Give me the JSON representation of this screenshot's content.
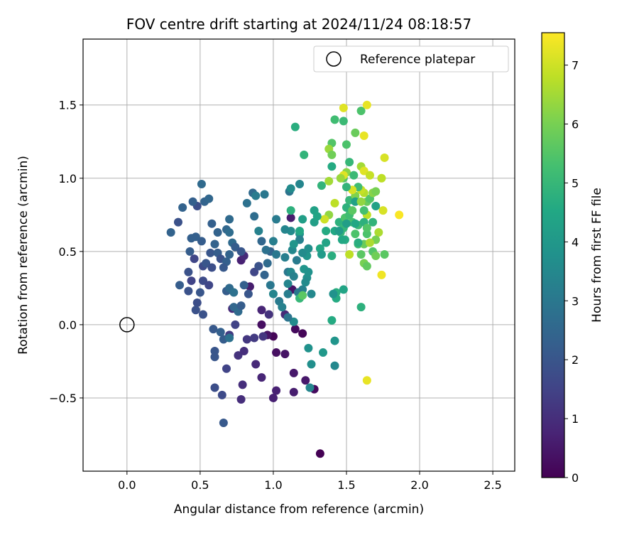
{
  "chart_data": {
    "type": "scatter",
    "title": "FOV centre drift starting at 2024/11/24 08:18:57",
    "xlabel": "Angular distance from reference (arcmin)",
    "ylabel": "Rotation from reference (arcmin)",
    "xlim": [
      -0.3,
      2.65
    ],
    "ylim": [
      -1.0,
      1.95
    ],
    "x_ticks": [
      0.0,
      0.5,
      1.0,
      1.5,
      2.0,
      2.5
    ],
    "x_tick_labels": [
      "0.0",
      "0.5",
      "1.0",
      "1.5",
      "2.0",
      "2.5"
    ],
    "y_ticks": [
      -0.5,
      0.0,
      0.5,
      1.0,
      1.5
    ],
    "y_tick_labels": [
      "−0.5",
      "0.0",
      "0.5",
      "1.0",
      "1.5"
    ],
    "grid": true,
    "legend": {
      "position": "top-right",
      "entries": [
        "Reference platepar"
      ]
    },
    "reference_point": {
      "x": 0.0,
      "y": 0.0
    },
    "colorbar": {
      "label": "Hours from first FF file",
      "range": [
        0,
        7.55
      ],
      "ticks": [
        0,
        1,
        2,
        3,
        4,
        5,
        6,
        7
      ],
      "tick_labels": [
        "0",
        "1",
        "2",
        "3",
        "4",
        "5",
        "6",
        "7"
      ],
      "colormap": "viridis"
    },
    "points": [
      {
        "x": 1.0,
        "y": -0.08,
        "t": 0.1
      },
      {
        "x": 1.15,
        "y": -0.03,
        "t": 0.2
      },
      {
        "x": 1.2,
        "y": -0.06,
        "t": 0.1
      },
      {
        "x": 0.92,
        "y": 0.0,
        "t": 0.3
      },
      {
        "x": 1.02,
        "y": -0.19,
        "t": 0.3
      },
      {
        "x": 1.08,
        "y": -0.2,
        "t": 0.4
      },
      {
        "x": 1.14,
        "y": -0.33,
        "t": 0.5
      },
      {
        "x": 1.22,
        "y": -0.38,
        "t": 0.5
      },
      {
        "x": 1.28,
        "y": -0.44,
        "t": 0.2
      },
      {
        "x": 1.32,
        "y": -0.88,
        "t": 0.0
      },
      {
        "x": 1.14,
        "y": -0.46,
        "t": 0.6
      },
      {
        "x": 1.0,
        "y": -0.5,
        "t": 0.7
      },
      {
        "x": 1.02,
        "y": -0.45,
        "t": 0.7
      },
      {
        "x": 0.92,
        "y": -0.36,
        "t": 0.8
      },
      {
        "x": 0.88,
        "y": -0.27,
        "t": 0.9
      },
      {
        "x": 0.96,
        "y": -0.07,
        "t": 0.4
      },
      {
        "x": 0.78,
        "y": -0.51,
        "t": 1.0
      },
      {
        "x": 0.79,
        "y": -0.41,
        "t": 1.0
      },
      {
        "x": 0.76,
        "y": -0.21,
        "t": 1.1
      },
      {
        "x": 0.8,
        "y": -0.18,
        "t": 1.0
      },
      {
        "x": 0.82,
        "y": -0.1,
        "t": 1.2
      },
      {
        "x": 0.87,
        "y": -0.09,
        "t": 1.3
      },
      {
        "x": 0.93,
        "y": -0.08,
        "t": 1.2
      },
      {
        "x": 0.97,
        "y": 0.07,
        "t": 1.1
      },
      {
        "x": 0.92,
        "y": 0.1,
        "t": 0.8
      },
      {
        "x": 1.08,
        "y": 0.07,
        "t": 0.9
      },
      {
        "x": 1.13,
        "y": 0.24,
        "t": 0.4
      },
      {
        "x": 1.12,
        "y": 0.73,
        "t": 0.6
      },
      {
        "x": 0.84,
        "y": 0.26,
        "t": 0.6
      },
      {
        "x": 0.78,
        "y": 0.44,
        "t": 0.7
      },
      {
        "x": 0.8,
        "y": 0.47,
        "t": 0.9
      },
      {
        "x": 0.72,
        "y": 0.11,
        "t": 0.9
      },
      {
        "x": 0.74,
        "y": 0.0,
        "t": 1.5
      },
      {
        "x": 0.7,
        "y": -0.07,
        "t": 1.3
      },
      {
        "x": 0.68,
        "y": -0.3,
        "t": 1.5
      },
      {
        "x": 0.65,
        "y": -0.48,
        "t": 1.7
      },
      {
        "x": 0.6,
        "y": -0.43,
        "t": 1.8
      },
      {
        "x": 0.66,
        "y": -0.67,
        "t": 2.1
      },
      {
        "x": 0.6,
        "y": -0.18,
        "t": 2.0
      },
      {
        "x": 0.6,
        "y": -0.22,
        "t": 2.0
      },
      {
        "x": 0.66,
        "y": -0.1,
        "t": 2.2
      },
      {
        "x": 0.59,
        "y": -0.03,
        "t": 2.1
      },
      {
        "x": 0.64,
        "y": -0.05,
        "t": 2.3
      },
      {
        "x": 0.52,
        "y": 0.07,
        "t": 1.9
      },
      {
        "x": 0.48,
        "y": 0.15,
        "t": 1.8
      },
      {
        "x": 0.47,
        "y": 0.1,
        "t": 1.9
      },
      {
        "x": 0.5,
        "y": 0.22,
        "t": 2.0
      },
      {
        "x": 0.52,
        "y": 0.3,
        "t": 1.7
      },
      {
        "x": 0.56,
        "y": 0.27,
        "t": 1.6
      },
      {
        "x": 0.42,
        "y": 0.23,
        "t": 1.9
      },
      {
        "x": 0.36,
        "y": 0.27,
        "t": 2.2
      },
      {
        "x": 0.44,
        "y": 0.3,
        "t": 1.5
      },
      {
        "x": 0.46,
        "y": 0.45,
        "t": 1.6
      },
      {
        "x": 0.42,
        "y": 0.36,
        "t": 1.9
      },
      {
        "x": 0.52,
        "y": 0.4,
        "t": 1.7
      },
      {
        "x": 0.54,
        "y": 0.42,
        "t": 2.0
      },
      {
        "x": 0.58,
        "y": 0.39,
        "t": 1.8
      },
      {
        "x": 0.57,
        "y": 0.49,
        "t": 2.0
      },
      {
        "x": 0.62,
        "y": 0.49,
        "t": 2.2
      },
      {
        "x": 0.64,
        "y": 0.45,
        "t": 1.9
      },
      {
        "x": 0.68,
        "y": 0.43,
        "t": 2.3
      },
      {
        "x": 0.66,
        "y": 0.39,
        "t": 2.1
      },
      {
        "x": 0.6,
        "y": 0.55,
        "t": 2.4
      },
      {
        "x": 0.62,
        "y": 0.63,
        "t": 2.4
      },
      {
        "x": 0.58,
        "y": 0.69,
        "t": 2.3
      },
      {
        "x": 0.51,
        "y": 0.57,
        "t": 2.2
      },
      {
        "x": 0.47,
        "y": 0.6,
        "t": 2.3
      },
      {
        "x": 0.43,
        "y": 0.5,
        "t": 2.2
      },
      {
        "x": 0.44,
        "y": 0.59,
        "t": 2.3
      },
      {
        "x": 0.48,
        "y": 0.81,
        "t": 1.8
      },
      {
        "x": 0.45,
        "y": 0.84,
        "t": 2.3
      },
      {
        "x": 0.38,
        "y": 0.8,
        "t": 2.4
      },
      {
        "x": 0.35,
        "y": 0.7,
        "t": 1.9
      },
      {
        "x": 0.3,
        "y": 0.63,
        "t": 2.4
      },
      {
        "x": 0.53,
        "y": 0.84,
        "t": 2.4
      },
      {
        "x": 0.56,
        "y": 0.86,
        "t": 2.5
      },
      {
        "x": 0.51,
        "y": 0.96,
        "t": 2.6
      },
      {
        "x": 0.7,
        "y": 0.72,
        "t": 2.6
      },
      {
        "x": 0.68,
        "y": 0.65,
        "t": 2.5
      },
      {
        "x": 0.7,
        "y": 0.63,
        "t": 2.7
      },
      {
        "x": 0.72,
        "y": 0.56,
        "t": 2.6
      },
      {
        "x": 0.74,
        "y": 0.53,
        "t": 2.2
      },
      {
        "x": 0.78,
        "y": 0.5,
        "t": 2.0
      },
      {
        "x": 0.7,
        "y": 0.48,
        "t": 2.4
      },
      {
        "x": 0.68,
        "y": 0.23,
        "t": 2.2
      },
      {
        "x": 0.7,
        "y": 0.25,
        "t": 2.6
      },
      {
        "x": 0.73,
        "y": 0.22,
        "t": 2.8
      },
      {
        "x": 0.73,
        "y": 0.12,
        "t": 2.5
      },
      {
        "x": 0.76,
        "y": 0.09,
        "t": 2.6
      },
      {
        "x": 0.7,
        "y": -0.09,
        "t": 2.8
      },
      {
        "x": 0.78,
        "y": 0.13,
        "t": 2.2
      },
      {
        "x": 0.8,
        "y": 0.27,
        "t": 2.3
      },
      {
        "x": 0.83,
        "y": 0.21,
        "t": 2.0
      },
      {
        "x": 0.87,
        "y": 0.36,
        "t": 1.6
      },
      {
        "x": 0.9,
        "y": 0.4,
        "t": 1.9
      },
      {
        "x": 0.94,
        "y": 0.34,
        "t": 2.4
      },
      {
        "x": 0.96,
        "y": 0.42,
        "t": 2.6
      },
      {
        "x": 0.98,
        "y": 0.5,
        "t": 2.4
      },
      {
        "x": 0.92,
        "y": 0.57,
        "t": 2.5
      },
      {
        "x": 0.95,
        "y": 0.51,
        "t": 2.8
      },
      {
        "x": 0.9,
        "y": 0.64,
        "t": 3.3
      },
      {
        "x": 0.82,
        "y": 0.83,
        "t": 2.8
      },
      {
        "x": 0.86,
        "y": 0.9,
        "t": 2.6
      },
      {
        "x": 0.87,
        "y": 0.74,
        "t": 2.7
      },
      {
        "x": 0.88,
        "y": 0.88,
        "t": 3.1
      },
      {
        "x": 0.94,
        "y": 0.89,
        "t": 3.0
      },
      {
        "x": 1.02,
        "y": 0.72,
        "t": 3.1
      },
      {
        "x": 1.0,
        "y": 0.57,
        "t": 3.2
      },
      {
        "x": 1.02,
        "y": 0.48,
        "t": 3.0
      },
      {
        "x": 0.98,
        "y": 0.27,
        "t": 3.0
      },
      {
        "x": 1.0,
        "y": 0.21,
        "t": 3.4
      },
      {
        "x": 1.04,
        "y": 0.16,
        "t": 3.1
      },
      {
        "x": 1.1,
        "y": 0.28,
        "t": 3.4
      },
      {
        "x": 1.1,
        "y": 0.36,
        "t": 3.0
      },
      {
        "x": 1.08,
        "y": 0.46,
        "t": 3.2
      },
      {
        "x": 1.12,
        "y": 0.36,
        "t": 3.5
      },
      {
        "x": 1.14,
        "y": 0.33,
        "t": 3.3
      },
      {
        "x": 1.16,
        "y": 0.44,
        "t": 3.1
      },
      {
        "x": 1.13,
        "y": 0.51,
        "t": 3.5
      },
      {
        "x": 1.12,
        "y": 0.64,
        "t": 3.6
      },
      {
        "x": 1.08,
        "y": 0.65,
        "t": 3.4
      },
      {
        "x": 1.11,
        "y": 0.91,
        "t": 2.9
      },
      {
        "x": 1.12,
        "y": 0.93,
        "t": 3.6
      },
      {
        "x": 1.18,
        "y": 0.96,
        "t": 3.4
      },
      {
        "x": 1.18,
        "y": 0.62,
        "t": 3.8
      },
      {
        "x": 1.18,
        "y": 0.58,
        "t": 3.3
      },
      {
        "x": 1.23,
        "y": 0.47,
        "t": 3.9
      },
      {
        "x": 1.2,
        "y": 0.49,
        "t": 3.6
      },
      {
        "x": 1.24,
        "y": 0.52,
        "t": 3.7
      },
      {
        "x": 1.23,
        "y": 0.32,
        "t": 3.7
      },
      {
        "x": 1.21,
        "y": 0.38,
        "t": 3.9
      },
      {
        "x": 1.24,
        "y": 0.36,
        "t": 3.8
      },
      {
        "x": 1.26,
        "y": 0.21,
        "t": 3.5
      },
      {
        "x": 1.2,
        "y": 0.24,
        "t": 3.3
      },
      {
        "x": 1.22,
        "y": 0.29,
        "t": 3.6
      },
      {
        "x": 1.17,
        "y": 0.22,
        "t": 3.0
      },
      {
        "x": 1.1,
        "y": 0.21,
        "t": 3.2
      },
      {
        "x": 1.06,
        "y": 0.12,
        "t": 3.3
      },
      {
        "x": 1.14,
        "y": 0.02,
        "t": 3.6
      },
      {
        "x": 1.1,
        "y": 0.05,
        "t": 2.9
      },
      {
        "x": 1.24,
        "y": -0.16,
        "t": 3.8
      },
      {
        "x": 1.26,
        "y": -0.27,
        "t": 3.7
      },
      {
        "x": 1.25,
        "y": -0.43,
        "t": 3.4
      },
      {
        "x": 1.34,
        "y": -0.19,
        "t": 4.0
      },
      {
        "x": 1.42,
        "y": -0.11,
        "t": 3.9
      },
      {
        "x": 1.42,
        "y": -0.28,
        "t": 3.5
      },
      {
        "x": 1.4,
        "y": 0.03,
        "t": 4.6
      },
      {
        "x": 1.43,
        "y": 0.18,
        "t": 4.6
      },
      {
        "x": 1.43,
        "y": 0.22,
        "t": 4.7
      },
      {
        "x": 1.41,
        "y": 0.21,
        "t": 3.8
      },
      {
        "x": 1.48,
        "y": 0.24,
        "t": 4.4
      },
      {
        "x": 1.6,
        "y": 0.12,
        "t": 4.8
      },
      {
        "x": 1.28,
        "y": 0.7,
        "t": 4.2
      },
      {
        "x": 1.28,
        "y": 0.78,
        "t": 4.3
      },
      {
        "x": 1.32,
        "y": 0.52,
        "t": 4.5
      },
      {
        "x": 1.33,
        "y": 0.48,
        "t": 4.1
      },
      {
        "x": 1.36,
        "y": 0.56,
        "t": 4.4
      },
      {
        "x": 1.36,
        "y": 0.64,
        "t": 4.6
      },
      {
        "x": 1.4,
        "y": 0.47,
        "t": 4.7
      },
      {
        "x": 1.42,
        "y": 0.64,
        "t": 4.5
      },
      {
        "x": 1.45,
        "y": 0.7,
        "t": 4.8
      },
      {
        "x": 1.46,
        "y": 0.63,
        "t": 5.0
      },
      {
        "x": 1.49,
        "y": 0.58,
        "t": 4.6
      },
      {
        "x": 1.48,
        "y": 0.66,
        "t": 5.0
      },
      {
        "x": 1.49,
        "y": 0.73,
        "t": 5.4
      },
      {
        "x": 1.52,
        "y": 0.75,
        "t": 5.2
      },
      {
        "x": 1.5,
        "y": 0.8,
        "t": 4.8
      },
      {
        "x": 1.52,
        "y": 0.85,
        "t": 5.0
      },
      {
        "x": 1.54,
        "y": 0.78,
        "t": 5.6
      },
      {
        "x": 1.54,
        "y": 0.7,
        "t": 5.3
      },
      {
        "x": 1.56,
        "y": 0.62,
        "t": 5.4
      },
      {
        "x": 1.58,
        "y": 0.68,
        "t": 5.1
      },
      {
        "x": 1.58,
        "y": 0.55,
        "t": 5.2
      },
      {
        "x": 1.6,
        "y": 0.48,
        "t": 5.6
      },
      {
        "x": 1.62,
        "y": 0.55,
        "t": 5.8
      },
      {
        "x": 1.64,
        "y": 0.62,
        "t": 5.4
      },
      {
        "x": 1.62,
        "y": 0.42,
        "t": 6.0
      },
      {
        "x": 1.64,
        "y": 0.4,
        "t": 5.7
      },
      {
        "x": 1.68,
        "y": 0.5,
        "t": 5.5
      },
      {
        "x": 1.7,
        "y": 0.47,
        "t": 5.9
      },
      {
        "x": 1.72,
        "y": 0.63,
        "t": 6.6
      },
      {
        "x": 1.76,
        "y": 0.48,
        "t": 5.6
      },
      {
        "x": 1.7,
        "y": 0.58,
        "t": 6.0
      },
      {
        "x": 1.74,
        "y": 0.34,
        "t": 7.4
      },
      {
        "x": 1.75,
        "y": 0.78,
        "t": 7.1
      },
      {
        "x": 1.86,
        "y": 0.75,
        "t": 7.5
      },
      {
        "x": 1.64,
        "y": 0.75,
        "t": 6.8
      },
      {
        "x": 1.62,
        "y": 0.78,
        "t": 5.3
      },
      {
        "x": 1.64,
        "y": 0.84,
        "t": 5.8
      },
      {
        "x": 1.66,
        "y": 0.86,
        "t": 5.5
      },
      {
        "x": 1.68,
        "y": 0.9,
        "t": 6.2
      },
      {
        "x": 1.62,
        "y": 0.9,
        "t": 6.7
      },
      {
        "x": 1.6,
        "y": 0.92,
        "t": 6.9
      },
      {
        "x": 1.58,
        "y": 0.94,
        "t": 5.2
      },
      {
        "x": 1.56,
        "y": 0.88,
        "t": 6.1
      },
      {
        "x": 1.54,
        "y": 0.92,
        "t": 7.1
      },
      {
        "x": 1.5,
        "y": 0.94,
        "t": 4.9
      },
      {
        "x": 1.48,
        "y": 1.0,
        "t": 5.5
      },
      {
        "x": 1.5,
        "y": 1.04,
        "t": 6.2
      },
      {
        "x": 1.48,
        "y": 1.02,
        "t": 7.2
      },
      {
        "x": 1.46,
        "y": 1.0,
        "t": 6.4
      },
      {
        "x": 1.52,
        "y": 1.11,
        "t": 5.0
      },
      {
        "x": 1.55,
        "y": 1.02,
        "t": 5.1
      },
      {
        "x": 1.6,
        "y": 1.08,
        "t": 6.5
      },
      {
        "x": 1.62,
        "y": 1.05,
        "t": 7.2
      },
      {
        "x": 1.66,
        "y": 1.02,
        "t": 6.9
      },
      {
        "x": 1.74,
        "y": 1.0,
        "t": 6.8
      },
      {
        "x": 1.76,
        "y": 1.14,
        "t": 7.1
      },
      {
        "x": 1.62,
        "y": 1.29,
        "t": 7.3
      },
      {
        "x": 1.56,
        "y": 1.31,
        "t": 5.8
      },
      {
        "x": 1.5,
        "y": 1.23,
        "t": 5.4
      },
      {
        "x": 1.48,
        "y": 1.39,
        "t": 5.1
      },
      {
        "x": 1.48,
        "y": 1.48,
        "t": 7.2
      },
      {
        "x": 1.6,
        "y": 1.46,
        "t": 5.4
      },
      {
        "x": 1.64,
        "y": 1.5,
        "t": 7.3
      },
      {
        "x": 1.42,
        "y": 1.4,
        "t": 5.2
      },
      {
        "x": 1.4,
        "y": 1.24,
        "t": 5.5
      },
      {
        "x": 1.38,
        "y": 1.2,
        "t": 6.4
      },
      {
        "x": 1.4,
        "y": 1.16,
        "t": 5.9
      },
      {
        "x": 1.4,
        "y": 1.08,
        "t": 4.6
      },
      {
        "x": 1.38,
        "y": 0.98,
        "t": 6.5
      },
      {
        "x": 1.33,
        "y": 0.95,
        "t": 4.9
      },
      {
        "x": 1.42,
        "y": 0.83,
        "t": 6.8
      },
      {
        "x": 1.38,
        "y": 0.75,
        "t": 6.3
      },
      {
        "x": 1.35,
        "y": 0.72,
        "t": 7.0
      },
      {
        "x": 1.3,
        "y": 0.74,
        "t": 4.4
      },
      {
        "x": 1.2,
        "y": 0.72,
        "t": 4.2
      },
      {
        "x": 1.18,
        "y": 0.64,
        "t": 4.5
      },
      {
        "x": 1.14,
        "y": 0.55,
        "t": 3.9
      },
      {
        "x": 1.12,
        "y": 0.78,
        "t": 4.8
      },
      {
        "x": 1.21,
        "y": 1.16,
        "t": 4.9
      },
      {
        "x": 1.15,
        "y": 1.35,
        "t": 4.7
      },
      {
        "x": 1.64,
        "y": -0.38,
        "t": 7.3
      },
      {
        "x": 1.18,
        "y": 0.18,
        "t": 5.0
      },
      {
        "x": 1.2,
        "y": 0.2,
        "t": 5.6
      },
      {
        "x": 1.58,
        "y": 0.56,
        "t": 4.7
      },
      {
        "x": 1.56,
        "y": 0.69,
        "t": 4.5
      },
      {
        "x": 1.52,
        "y": 0.48,
        "t": 6.8
      },
      {
        "x": 1.68,
        "y": 0.7,
        "t": 4.9
      },
      {
        "x": 1.7,
        "y": 0.81,
        "t": 4.3
      },
      {
        "x": 1.62,
        "y": 0.7,
        "t": 4.8
      },
      {
        "x": 1.64,
        "y": 0.66,
        "t": 5.5
      },
      {
        "x": 1.45,
        "y": 0.64,
        "t": 4.1
      },
      {
        "x": 1.5,
        "y": 0.69,
        "t": 4.2
      },
      {
        "x": 1.47,
        "y": 0.58,
        "t": 4.5
      },
      {
        "x": 1.56,
        "y": 0.84,
        "t": 4.3
      },
      {
        "x": 1.6,
        "y": 0.84,
        "t": 6.3
      },
      {
        "x": 1.66,
        "y": 0.56,
        "t": 6.6
      },
      {
        "x": 1.7,
        "y": 0.91,
        "t": 6.0
      }
    ]
  }
}
